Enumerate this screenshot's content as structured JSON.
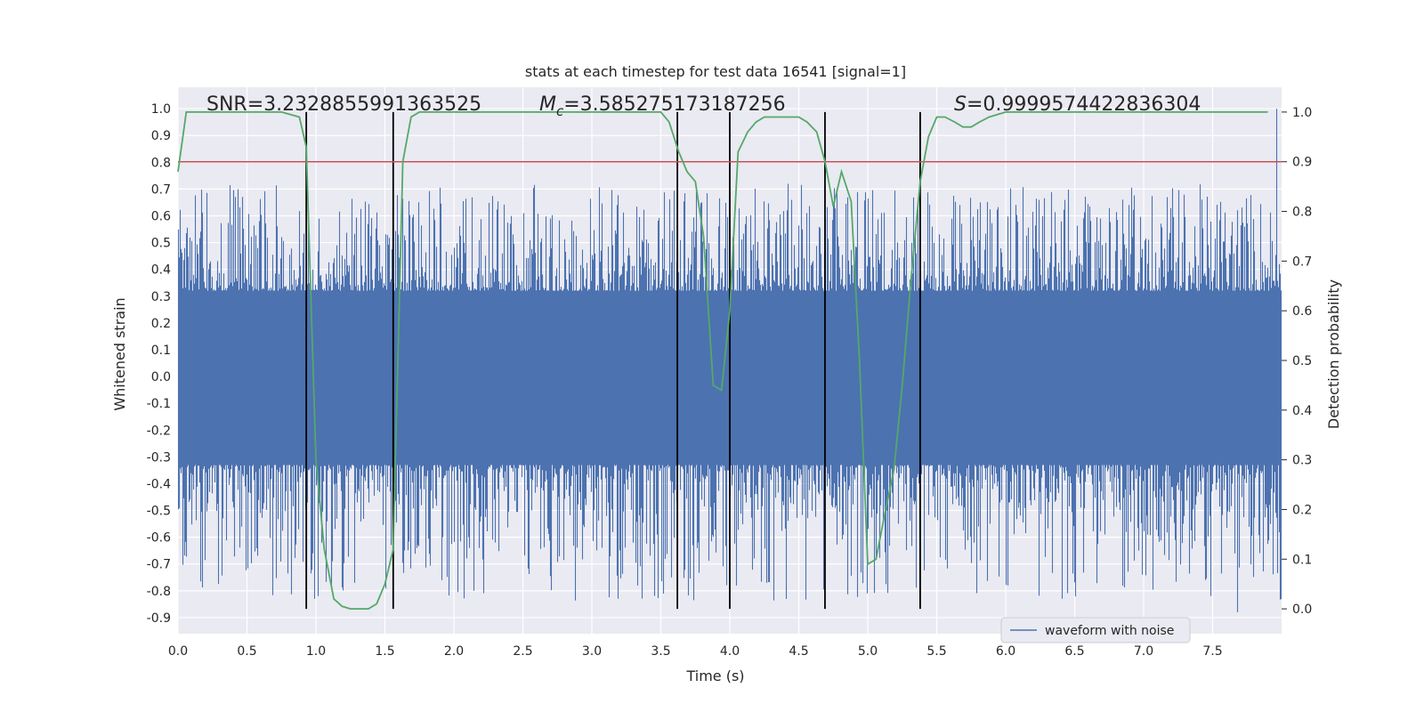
{
  "chart_data": {
    "type": "line",
    "title": "stats at each timestep for test data 16541 [signal=1]",
    "xlabel": "Time (s)",
    "ylabel": "Whitened strain",
    "y2label": "Detection probability",
    "xlim": [
      0.0,
      8.0
    ],
    "ylim": [
      -0.96,
      1.08
    ],
    "y2lim": [
      -0.05,
      1.05
    ],
    "x_ticks": [
      0.0,
      0.5,
      1.0,
      1.5,
      2.0,
      2.5,
      3.0,
      3.5,
      4.0,
      4.5,
      5.0,
      5.5,
      6.0,
      6.5,
      7.0,
      7.5
    ],
    "x_tick_labels": [
      "0.0",
      "0.5",
      "1.0",
      "1.5",
      "2.0",
      "2.5",
      "3.0",
      "3.5",
      "4.0",
      "4.5",
      "5.0",
      "5.5",
      "6.0",
      "6.5",
      "7.0",
      "7.5"
    ],
    "y_ticks": [
      1.0,
      0.9,
      0.8,
      0.7,
      0.6,
      0.5,
      0.4,
      0.3,
      0.2,
      0.1,
      0.0,
      -0.1,
      -0.2,
      -0.3,
      -0.4,
      -0.5,
      -0.6,
      -0.7,
      -0.8,
      -0.9
    ],
    "y_tick_labels": [
      "1.0",
      "0.9",
      "0.8",
      "0.7",
      "0.6",
      "0.5",
      "0.4",
      "0.3",
      "0.2",
      "0.1",
      "0.0",
      "-0.1",
      "-0.2",
      "-0.3",
      "-0.4",
      "-0.5",
      "-0.6",
      "-0.7",
      "-0.8",
      "-0.9"
    ],
    "y2_ticks": [
      1.0,
      0.9,
      0.8,
      0.7,
      0.6,
      0.5,
      0.4,
      0.3,
      0.2,
      0.1,
      0.0
    ],
    "y2_tick_labels": [
      "1.0",
      "0.9",
      "0.8",
      "0.7",
      "0.6",
      "0.5",
      "0.4",
      "0.3",
      "0.2",
      "0.1",
      "0.0"
    ],
    "annotations": {
      "snr": "SNR=3.2328855991363525",
      "mc_symbol": "M",
      "mc_subscript": "c",
      "mc_value": "=3.585275173187256",
      "s_symbol": "S",
      "s_value": "=0.9999574422836304"
    },
    "threshold": 0.9,
    "vertical_lines_x": [
      0.93,
      1.56,
      3.62,
      4.0,
      4.69,
      5.38
    ],
    "waveform": {
      "name": "waveform with noise",
      "color": "#4c72b0",
      "upper_envelope": 0.32,
      "lower_envelope": -0.33,
      "max_value": 1.0,
      "min_value": -0.88,
      "seed": 16541
    },
    "probability_series": {
      "name": "detection probability",
      "color": "#55a868",
      "x": [
        0.0,
        0.06,
        0.13,
        0.25,
        0.38,
        0.5,
        0.63,
        0.75,
        0.88,
        0.93,
        1.0,
        1.06,
        1.13,
        1.19,
        1.25,
        1.31,
        1.38,
        1.44,
        1.5,
        1.56,
        1.63,
        1.69,
        1.75,
        1.88,
        2.0,
        2.25,
        2.5,
        2.75,
        3.0,
        3.25,
        3.5,
        3.56,
        3.63,
        3.69,
        3.75,
        3.81,
        3.88,
        3.94,
        4.0,
        4.06,
        4.13,
        4.19,
        4.25,
        4.38,
        4.5,
        4.56,
        4.63,
        4.69,
        4.75,
        4.81,
        4.88,
        4.94,
        5.0,
        5.06,
        5.13,
        5.19,
        5.25,
        5.31,
        5.38,
        5.44,
        5.5,
        5.56,
        5.63,
        5.69,
        5.75,
        5.81,
        5.88,
        6.0,
        6.5,
        7.0,
        7.5,
        7.9
      ],
      "y": [
        0.88,
        1.0,
        1.0,
        1.0,
        1.0,
        1.0,
        1.0,
        1.0,
        0.99,
        0.93,
        0.3,
        0.12,
        0.02,
        0.005,
        0.0,
        0.0,
        0.0,
        0.01,
        0.05,
        0.12,
        0.9,
        0.99,
        1.0,
        1.0,
        1.0,
        1.0,
        1.0,
        1.0,
        1.0,
        1.0,
        1.0,
        0.98,
        0.92,
        0.88,
        0.86,
        0.75,
        0.45,
        0.44,
        0.6,
        0.92,
        0.96,
        0.98,
        0.99,
        0.99,
        0.99,
        0.98,
        0.96,
        0.9,
        0.81,
        0.88,
        0.82,
        0.5,
        0.09,
        0.1,
        0.2,
        0.28,
        0.45,
        0.65,
        0.86,
        0.95,
        0.99,
        0.99,
        0.98,
        0.97,
        0.97,
        0.98,
        0.99,
        1.0,
        1.0,
        1.0,
        1.0,
        1.0
      ]
    },
    "threshold_color": "#c44e52",
    "vline_color": "#000000",
    "background_color": "#eaeaf2",
    "grid": true,
    "legend_location": "lower-right"
  }
}
